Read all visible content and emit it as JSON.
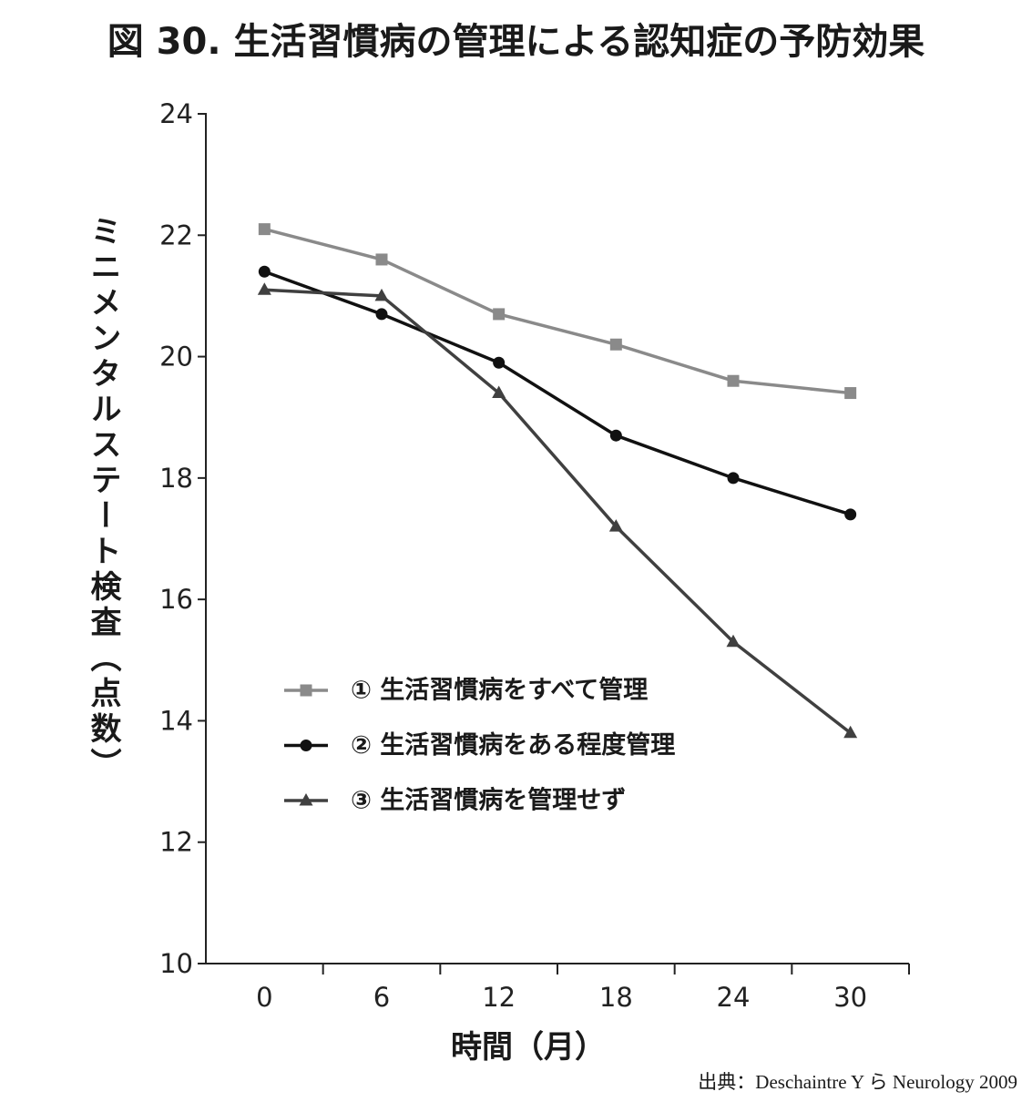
{
  "chart_data": {
    "type": "line",
    "title": "図 30. 生活習慣病の管理による認知症の予防効果",
    "xlabel": "時間（月）",
    "ylabel": "ミニメンタルステート検査（点数）",
    "categories": [
      "0",
      "6",
      "12",
      "18",
      "24",
      "30"
    ],
    "ylim": [
      10,
      24
    ],
    "yticks": [
      10,
      12,
      14,
      16,
      18,
      20,
      22,
      24
    ],
    "grid": false,
    "legend": "inside-lower-left",
    "axis_color": "#222222",
    "series": [
      {
        "name": "① 生活習慣病をすべて管理",
        "marker": "square",
        "color": "#8a8a8a",
        "values": [
          22.1,
          21.6,
          20.7,
          20.2,
          19.6,
          19.4
        ]
      },
      {
        "name": "② 生活習慣病をある程度管理",
        "marker": "circle",
        "color": "#111111",
        "values": [
          21.4,
          20.7,
          19.9,
          18.7,
          18.0,
          17.4
        ]
      },
      {
        "name": "③ 生活習慣病を管理せず",
        "marker": "triangle",
        "color": "#404040",
        "values": [
          21.1,
          21.0,
          19.4,
          17.2,
          15.3,
          13.8
        ]
      }
    ]
  },
  "source": "出典：Deschaintre Y ら Neurology 2009"
}
